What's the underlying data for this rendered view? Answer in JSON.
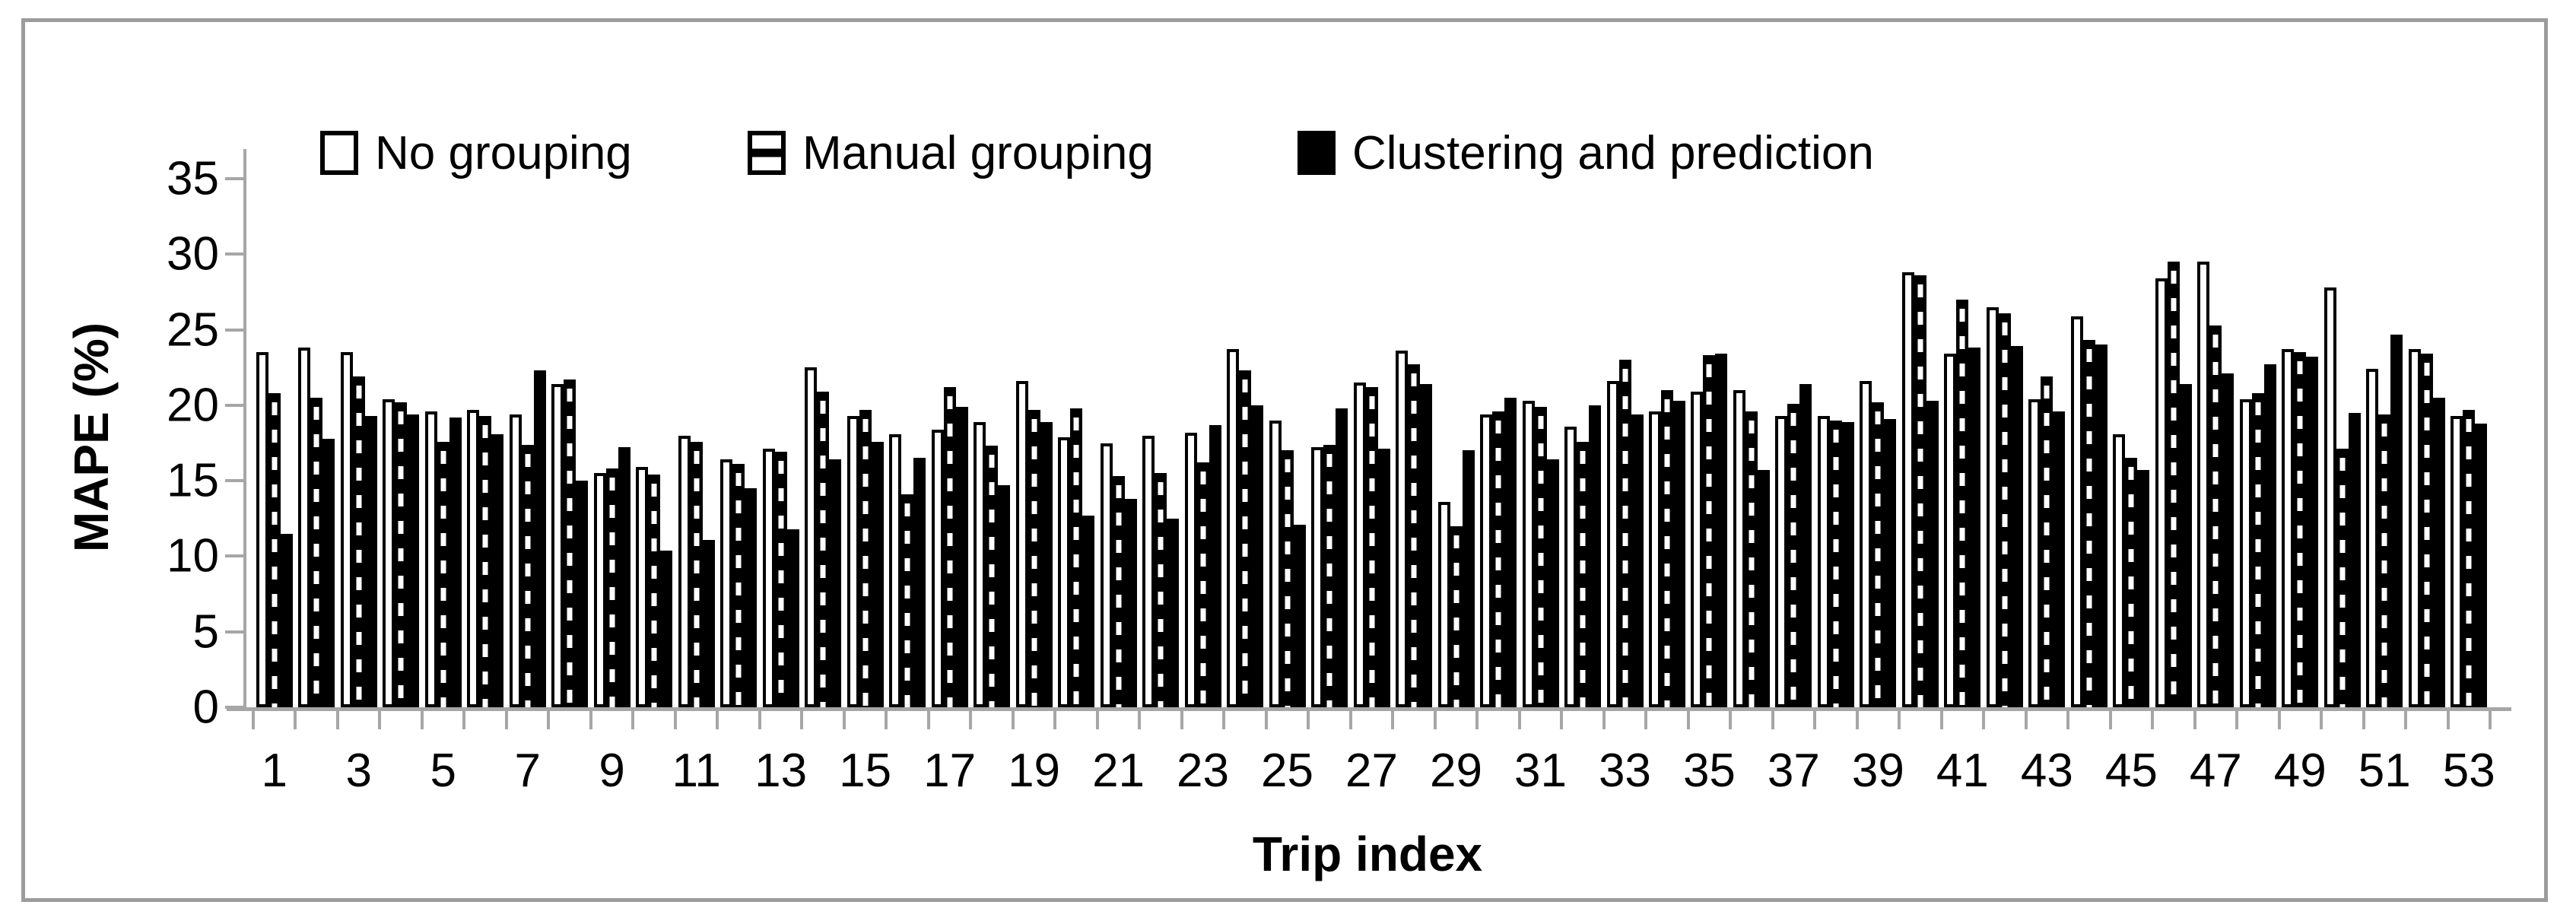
{
  "colors": {
    "bar_fill": "#000000",
    "axis_line": "#a6a6a6",
    "figure_frame": "#9c9c9c",
    "background": "#ffffff",
    "text": "#000000"
  },
  "chart_data": {
    "type": "bar",
    "title": "",
    "xlabel": "Trip index",
    "ylabel": "MAPE (%)",
    "ylim": [
      0,
      35
    ],
    "yticks": [
      0,
      5,
      10,
      15,
      20,
      25,
      30,
      35
    ],
    "xtick_labels": [
      "1",
      "3",
      "5",
      "7",
      "9",
      "11",
      "13",
      "15",
      "17",
      "19",
      "21",
      "23",
      "25",
      "27",
      "29",
      "31",
      "33",
      "35",
      "37",
      "39",
      "41",
      "43",
      "45",
      "47",
      "49",
      "51",
      "53"
    ],
    "grid": false,
    "legend_position": "top",
    "categories": [
      1,
      2,
      3,
      4,
      5,
      6,
      7,
      8,
      9,
      10,
      11,
      12,
      13,
      14,
      15,
      16,
      17,
      18,
      19,
      20,
      21,
      22,
      23,
      24,
      25,
      26,
      27,
      28,
      29,
      30,
      31,
      32,
      33,
      34,
      35,
      36,
      37,
      38,
      39,
      40,
      41,
      42,
      43,
      44,
      45,
      46,
      47,
      48,
      49,
      50,
      51,
      52,
      53
    ],
    "series": [
      {
        "name": "No grouping",
        "pattern": "white",
        "values": [
          23.5,
          23.8,
          23.5,
          20.4,
          19.6,
          19.7,
          19.4,
          21.4,
          15.5,
          15.9,
          18.0,
          16.4,
          17.1,
          22.5,
          19.3,
          18.1,
          18.4,
          18.9,
          21.6,
          17.9,
          17.5,
          18.0,
          18.2,
          23.7,
          19.0,
          17.2,
          21.5,
          23.6,
          13.6,
          19.4,
          20.3,
          18.6,
          21.6,
          19.6,
          20.9,
          21.0,
          19.3,
          19.3,
          21.6,
          28.8,
          23.4,
          26.5,
          20.4,
          25.9,
          18.1,
          28.4,
          29.5,
          20.4,
          23.7,
          27.8,
          22.4,
          23.7,
          19.3
        ]
      },
      {
        "name": "Manual grouping",
        "pattern": "striped",
        "values": [
          20.8,
          20.5,
          21.9,
          20.2,
          17.6,
          19.3,
          17.4,
          21.7,
          15.8,
          15.4,
          17.6,
          16.1,
          16.9,
          20.9,
          19.7,
          14.1,
          21.2,
          17.3,
          19.7,
          19.8,
          15.3,
          15.5,
          16.2,
          22.3,
          17.0,
          17.4,
          21.2,
          22.7,
          12.0,
          19.6,
          19.9,
          17.6,
          23.0,
          21.0,
          23.3,
          19.6,
          20.1,
          19.0,
          20.2,
          28.6,
          27.0,
          26.1,
          21.9,
          24.3,
          16.5,
          29.5,
          25.3,
          20.8,
          23.5,
          17.1,
          19.4,
          23.4,
          19.7
        ]
      },
      {
        "name": "Clustering and prediction",
        "pattern": "black",
        "values": [
          11.5,
          17.8,
          19.3,
          19.4,
          19.2,
          18.1,
          22.3,
          15.0,
          17.2,
          10.4,
          11.1,
          14.5,
          11.8,
          16.4,
          17.6,
          16.5,
          19.9,
          14.7,
          18.9,
          12.7,
          13.8,
          12.5,
          18.7,
          20.0,
          12.1,
          19.8,
          17.1,
          21.4,
          17.0,
          20.5,
          16.4,
          20.0,
          19.4,
          20.3,
          23.4,
          15.7,
          21.4,
          18.9,
          19.1,
          20.3,
          23.8,
          23.9,
          19.6,
          24.0,
          15.7,
          21.4,
          22.1,
          22.7,
          23.2,
          19.5,
          24.7,
          20.5,
          18.8
        ]
      }
    ],
    "legend_x_positions": [
      421,
      983,
      1706
    ]
  }
}
